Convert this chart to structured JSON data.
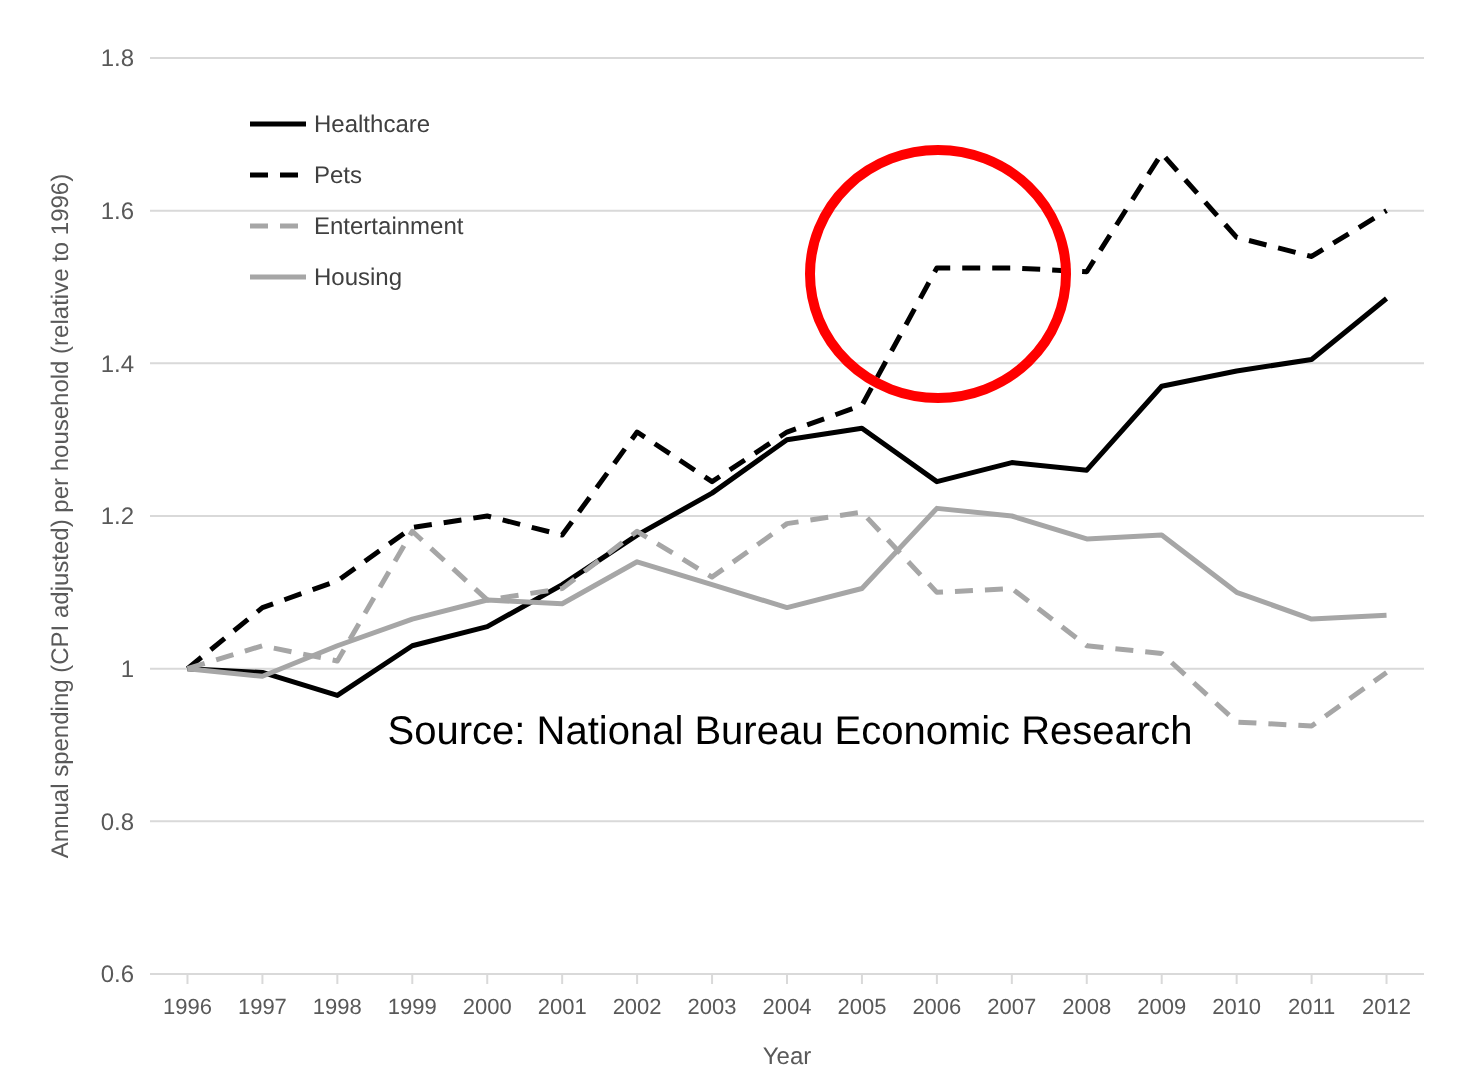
{
  "chart_data": {
    "type": "line",
    "xlabel": "Year",
    "ylabel": "Annual spending (CPI adjusted) per household (relative to 1996)",
    "categories": [
      "1996",
      "1997",
      "1998",
      "1999",
      "2000",
      "2001",
      "2002",
      "2003",
      "2004",
      "2005",
      "2006",
      "2007",
      "2008",
      "2009",
      "2010",
      "2011",
      "2012"
    ],
    "series": [
      {
        "name": "Healthcare",
        "color": "#000000",
        "line_style": "solid",
        "values": [
          1.0,
          0.995,
          0.965,
          1.03,
          1.055,
          1.11,
          1.175,
          1.23,
          1.3,
          1.315,
          1.245,
          1.27,
          1.26,
          1.37,
          1.39,
          1.405,
          1.485
        ]
      },
      {
        "name": "Pets",
        "color": "#000000",
        "line_style": "dashed",
        "values": [
          1.0,
          1.08,
          1.115,
          1.185,
          1.2,
          1.175,
          1.31,
          1.245,
          1.31,
          1.345,
          1.525,
          1.525,
          1.52,
          1.675,
          1.565,
          1.54,
          1.6
        ]
      },
      {
        "name": "Entertainment",
        "color": "#a6a6a6",
        "line_style": "dashed",
        "values": [
          1.0,
          1.03,
          1.01,
          1.18,
          1.09,
          1.105,
          1.18,
          1.12,
          1.19,
          1.205,
          1.1,
          1.105,
          1.03,
          1.02,
          0.93,
          0.925,
          0.995
        ]
      },
      {
        "name": "Housing",
        "color": "#a6a6a6",
        "line_style": "solid",
        "values": [
          1.0,
          0.99,
          1.03,
          1.065,
          1.09,
          1.085,
          1.14,
          1.11,
          1.08,
          1.105,
          1.21,
          1.2,
          1.17,
          1.175,
          1.1,
          1.065,
          1.07
        ]
      }
    ],
    "ylim": [
      0.6,
      1.8
    ],
    "yticks": [
      0.6,
      0.8,
      1,
      1.2,
      1.4,
      1.6,
      1.8
    ],
    "grid": "y",
    "legend": "top left",
    "marker": "none",
    "annotations": [
      "Source: National Bureau Economic Research"
    ]
  }
}
